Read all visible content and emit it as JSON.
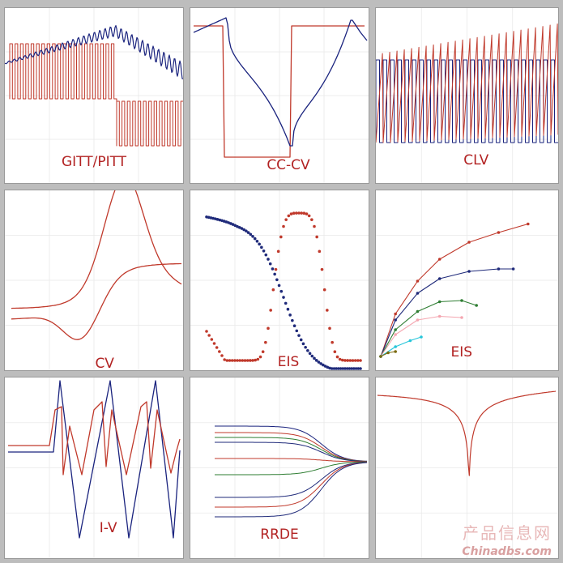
{
  "panels": [
    {
      "label": "GITT/PITT"
    },
    {
      "label": "CC-CV"
    },
    {
      "label": "CLV"
    },
    {
      "label": "CV"
    },
    {
      "label": "EIS"
    },
    {
      "label": "EIS"
    },
    {
      "label": "I-V"
    },
    {
      "label": "RRDE"
    },
    {
      "label": ""
    }
  ],
  "watermark": {
    "cn": "产品信息网",
    "en": "Chinadbs.com"
  },
  "colors": {
    "red": "#c0392b",
    "blue": "#1a237e",
    "green": "#2e7d32",
    "pink": "#f4a6b0",
    "cyan": "#26c6da",
    "olive": "#7a6a10",
    "navy": "#1f2a7a"
  },
  "chart_data": [
    {
      "type": "line",
      "title": "GITT/PITT",
      "series": [
        {
          "color": "red",
          "kind": "pulse"
        },
        {
          "color": "blue",
          "kind": "relax"
        }
      ]
    },
    {
      "type": "line",
      "title": "CC-CV"
    },
    {
      "type": "line",
      "title": "CLV"
    },
    {
      "type": "line",
      "title": "CV"
    },
    {
      "type": "scatter",
      "title": "EIS"
    },
    {
      "type": "line",
      "title": "EIS",
      "series": [
        {
          "color": "red",
          "points": [
            [
              0,
              0
            ],
            [
              2,
              3.5
            ],
            [
              5,
              6.2
            ],
            [
              8,
              8.0
            ],
            [
              12,
              9.4
            ],
            [
              16,
              10.2
            ],
            [
              20,
              10.9
            ]
          ]
        },
        {
          "color": "navy",
          "points": [
            [
              0,
              0
            ],
            [
              2,
              3
            ],
            [
              5,
              5.2
            ],
            [
              8,
              6.4
            ],
            [
              12,
              7.0
            ],
            [
              16,
              7.2
            ],
            [
              18,
              7.2
            ]
          ]
        },
        {
          "color": "green",
          "points": [
            [
              0,
              0
            ],
            [
              2,
              2.2
            ],
            [
              5,
              3.7
            ],
            [
              8,
              4.5
            ],
            [
              11,
              4.6
            ],
            [
              13,
              4.2
            ]
          ]
        },
        {
          "color": "pink",
          "points": [
            [
              0,
              0
            ],
            [
              2,
              1.8
            ],
            [
              5,
              3.0
            ],
            [
              8,
              3.3
            ],
            [
              11,
              3.2
            ]
          ]
        },
        {
          "color": "cyan",
          "points": [
            [
              0,
              0
            ],
            [
              2,
              0.8
            ],
            [
              4,
              1.3
            ],
            [
              5.5,
              1.6
            ]
          ]
        },
        {
          "color": "olive",
          "points": [
            [
              0,
              0
            ],
            [
              1,
              0.3
            ],
            [
              2,
              0.4
            ]
          ]
        }
      ]
    },
    {
      "type": "line",
      "title": "I-V"
    },
    {
      "type": "line",
      "title": "RRDE"
    },
    {
      "type": "line",
      "title": ""
    }
  ]
}
